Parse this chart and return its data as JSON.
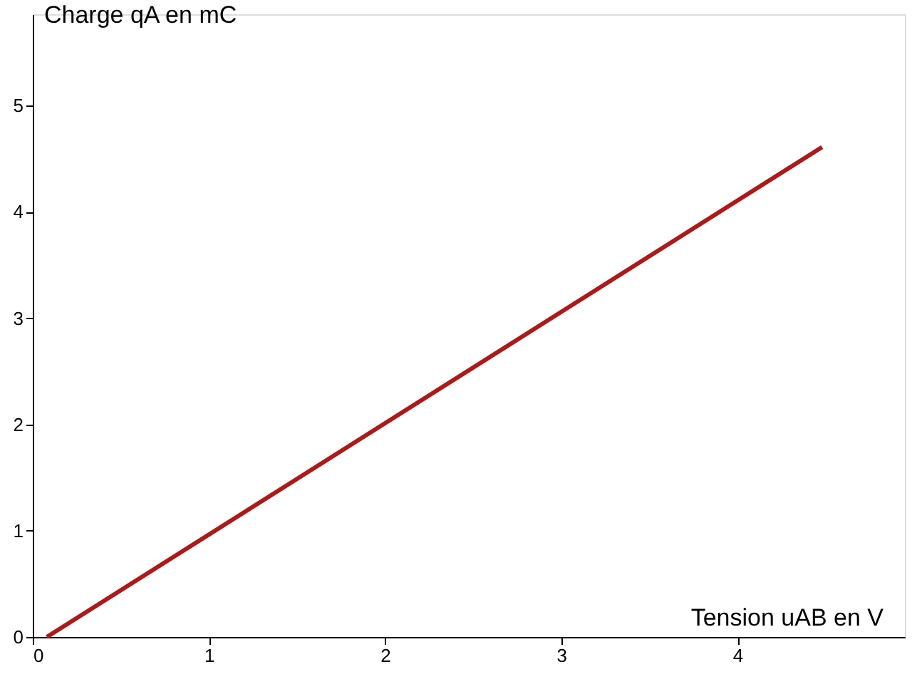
{
  "chart_data": {
    "type": "line",
    "xlabel": "Tension uAB en V",
    "ylabel": "Charge qA en mC",
    "series": [
      {
        "color": "#b01818",
        "x": [
          0.08,
          4.48
        ],
        "values": [
          0,
          4.61
        ]
      }
    ],
    "xlim": [
      0,
      4.95
    ],
    "ylim": [
      0,
      5.86
    ],
    "xticks": [
      0,
      1,
      2,
      3,
      4
    ],
    "yticks": [
      0,
      1,
      2,
      3,
      4,
      5
    ],
    "grid": false,
    "marker": "none",
    "line_style": "solid"
  }
}
